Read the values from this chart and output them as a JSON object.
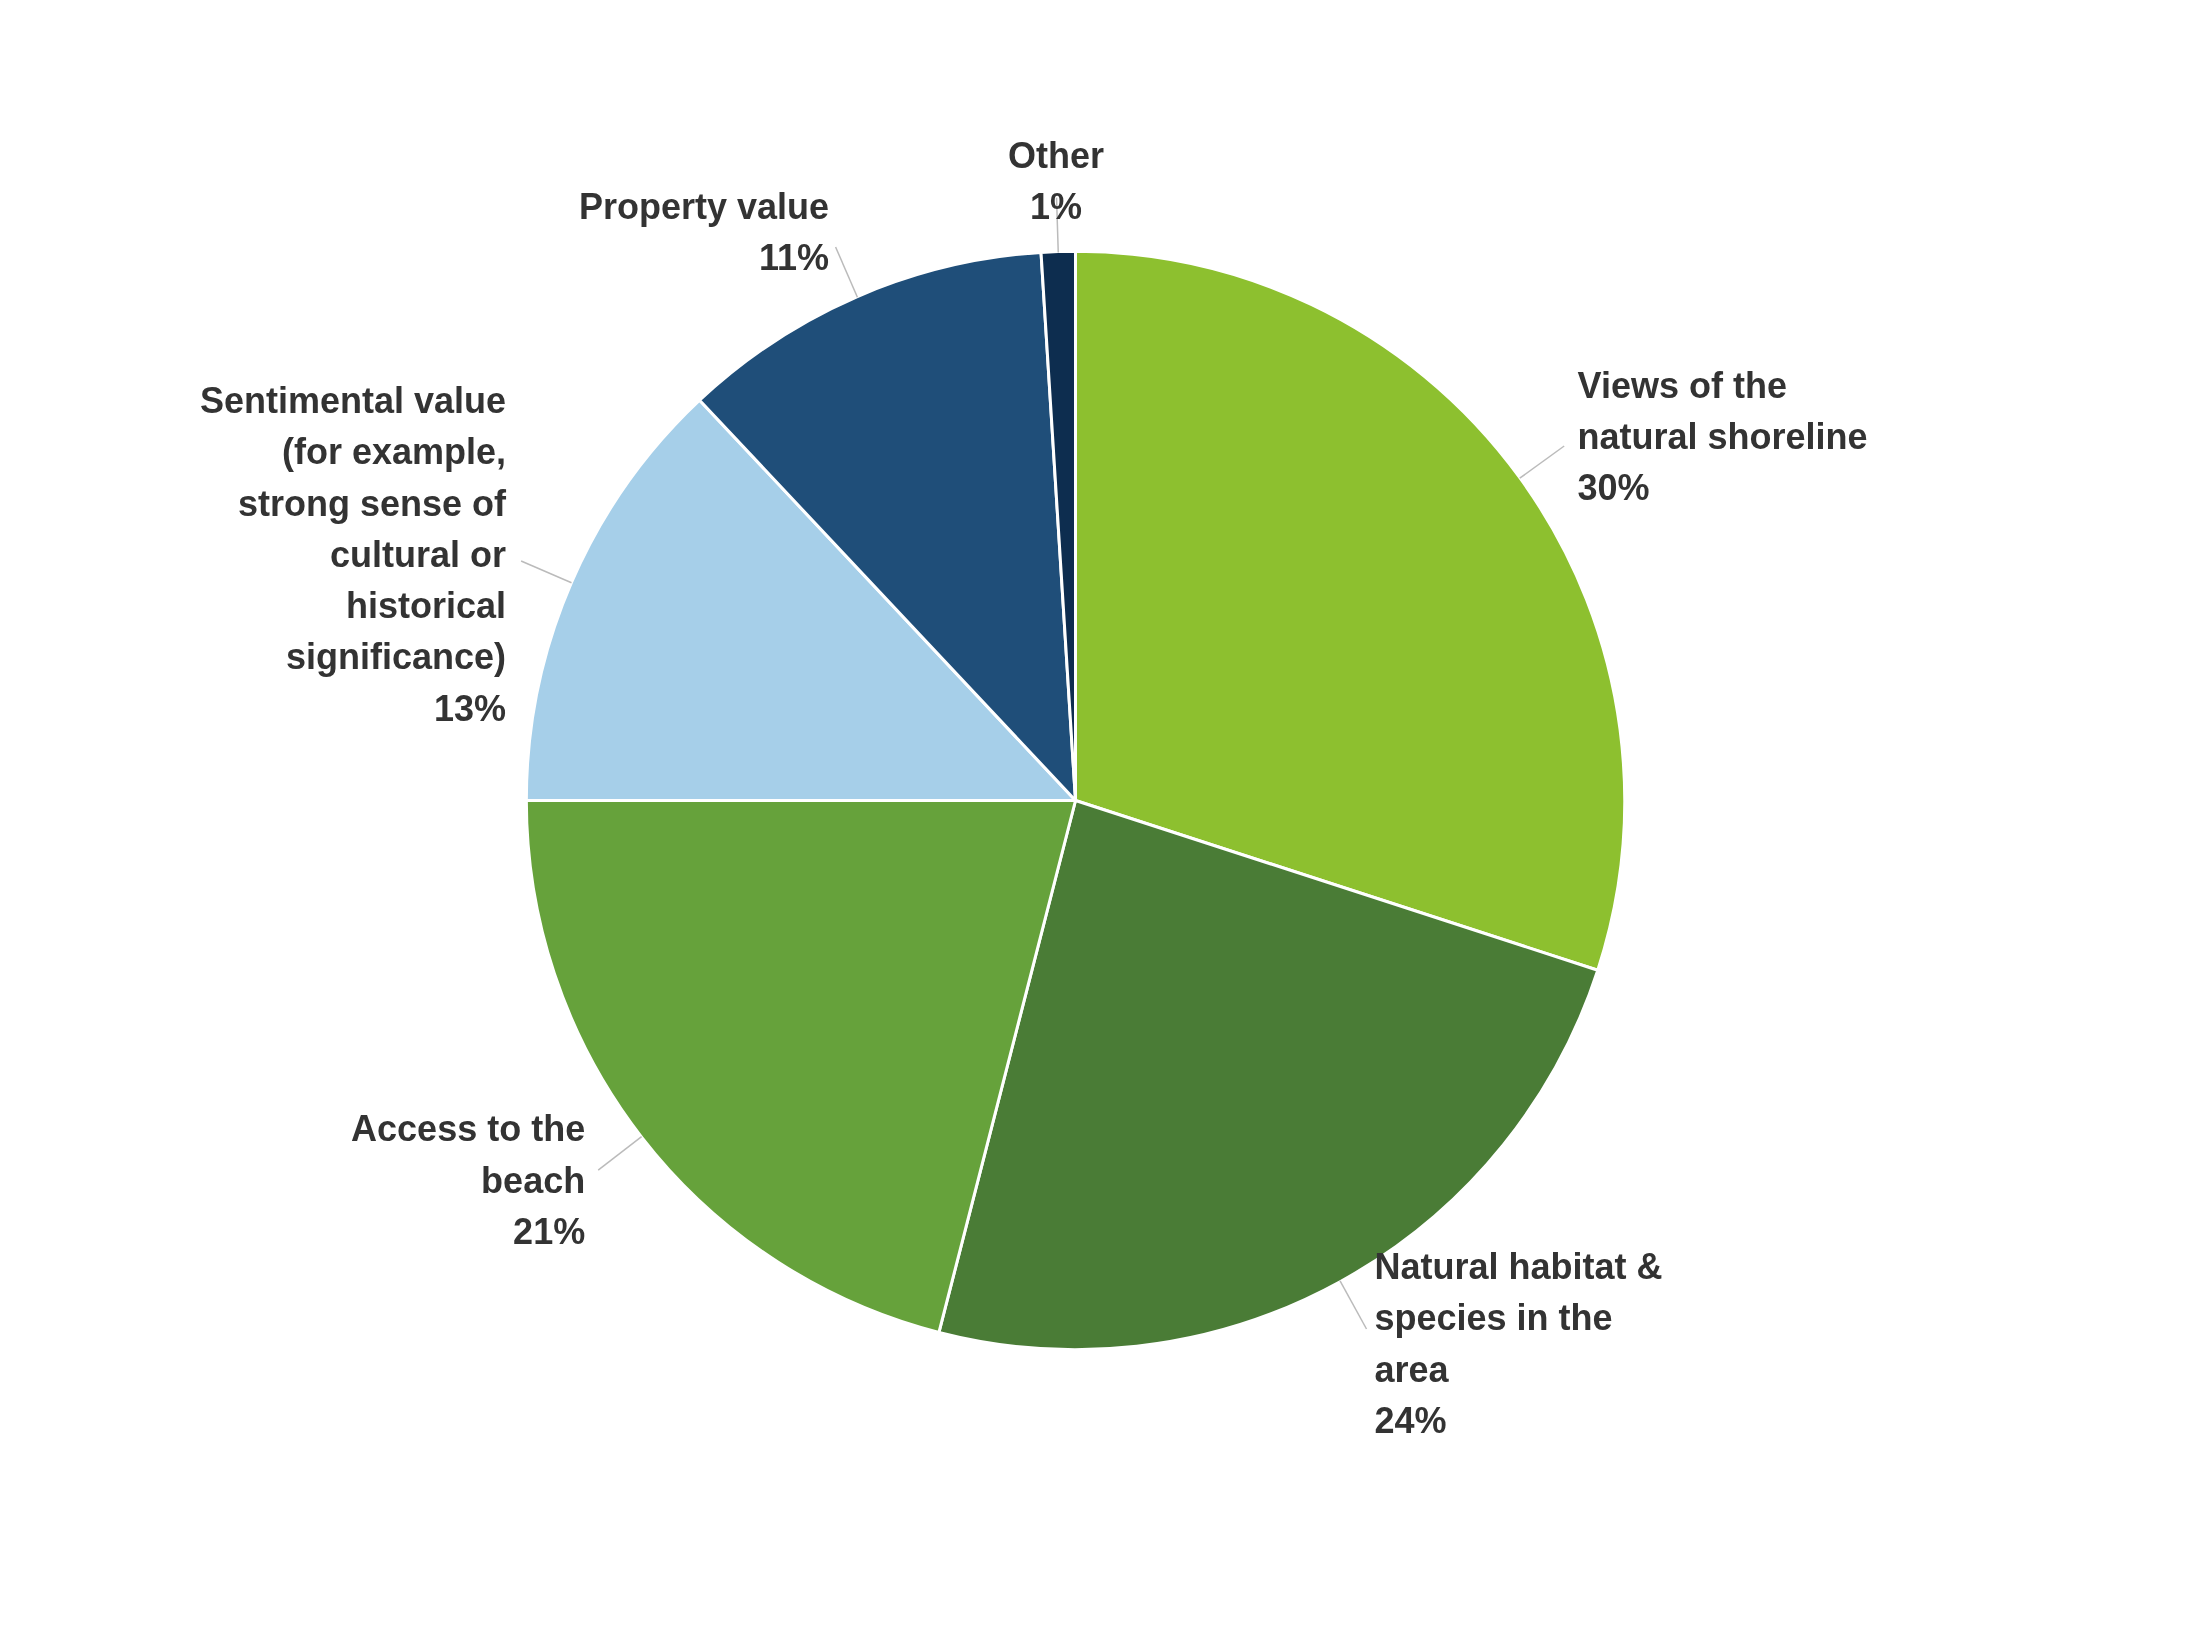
{
  "chart_data": {
    "type": "pie",
    "categories": [
      "Views of the natural shoreline",
      "Natural habitat & species in the area",
      "Access to the beach",
      "Sentimental value (for example, strong sense of cultural or historical significance)",
      "Property value",
      "Other"
    ],
    "values": [
      30,
      24,
      21,
      13,
      11,
      1
    ],
    "colors": [
      "#8dc02f",
      "#4a7c36",
      "#66a23b",
      "#a6cfe9",
      "#1f4e79",
      "#0d2d4f"
    ],
    "value_labels": [
      "30%",
      "24%",
      "21%",
      "13%",
      "11%",
      "1%"
    ]
  }
}
